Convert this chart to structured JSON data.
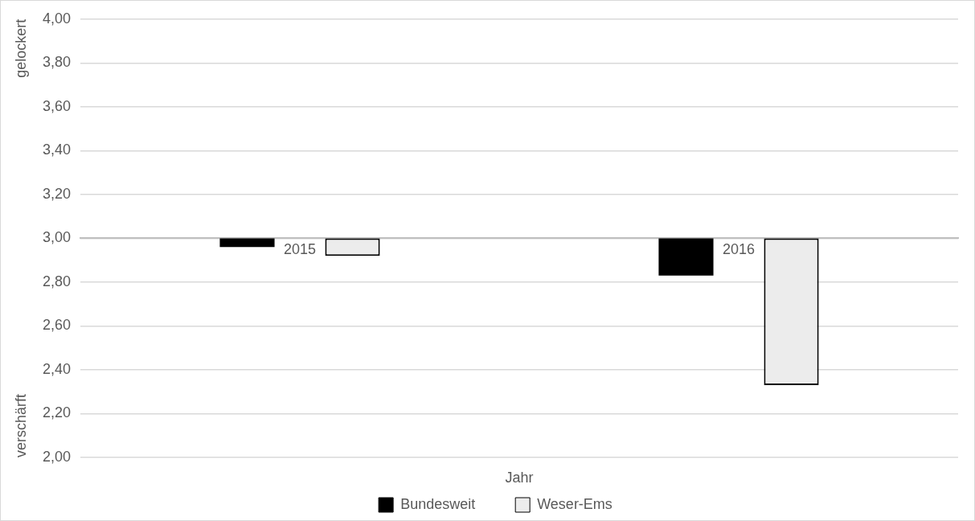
{
  "chart_data": {
    "type": "bar",
    "categories": [
      "2015",
      "2016"
    ],
    "series": [
      {
        "name": "Bundesweit",
        "color": "#000000",
        "base": [
          3,
          3
        ],
        "values": [
          -0.04,
          -0.17
        ]
      },
      {
        "name": "Weser-Ems",
        "color": "#ececec",
        "base": [
          3,
          3
        ],
        "values": [
          -0.08,
          -0.67
        ]
      }
    ],
    "xlabel": "Jahr",
    "annotations": [
      "gelockert",
      "verschärft"
    ],
    "ylim": [
      2,
      4
    ],
    "yticks": [
      {
        "value": 2,
        "label": "2,00"
      },
      {
        "value": 2.2,
        "label": "2,20"
      },
      {
        "value": 2.4,
        "label": "2,40"
      },
      {
        "value": 2.6,
        "label": "2,60"
      },
      {
        "value": 2.8,
        "label": "2,80"
      },
      {
        "value": 3,
        "label": "3,00"
      },
      {
        "value": 3.2,
        "label": "3,20"
      },
      {
        "value": 3.4,
        "label": "3,40"
      },
      {
        "value": 3.6,
        "label": "3,60"
      },
      {
        "value": 3.8,
        "label": "3,80"
      },
      {
        "value": 4,
        "label": "4,00"
      }
    ],
    "grid": "y",
    "legend": "bottom"
  }
}
